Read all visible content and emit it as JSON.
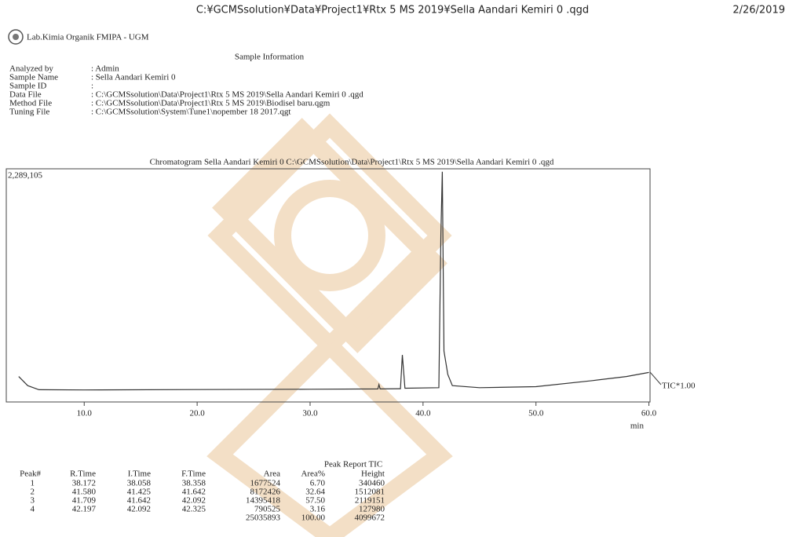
{
  "header": {
    "title": "C:¥GCMSsolution¥Data¥Project1¥Rtx 5 MS 2019¥Sella Aandari Kemiri 0 .qgd",
    "date": "2/26/2019",
    "lab": "Lab.Kimia Organik FMIPA - UGM"
  },
  "sample_info": {
    "title": "Sample Information",
    "fields": [
      {
        "label": "Analyzed by",
        "value": ": Admin"
      },
      {
        "label": "Sample Name",
        "value": ": Sella Aandari Kemiri 0"
      },
      {
        "label": "Sample ID",
        "value": ":"
      },
      {
        "label": "Data File",
        "value": ": C:\\GCMSsolution\\Data\\Project1\\Rtx 5 MS 2019\\Sella Aandari Kemiri 0 .qgd"
      },
      {
        "label": "Method File",
        "value": ": C:\\GCMSsolution\\Data\\Project1\\Rtx 5 MS 2019\\Biodisel baru.qgm"
      },
      {
        "label": "Tuning File",
        "value": ": C:\\GCMSsolution\\System\\Tune1\\nopember 18 2017.qgt"
      }
    ]
  },
  "chromatogram": {
    "type": "line",
    "title": "Chromatogram Sella Aandari Kemiri 0  C:\\GCMSsolution\\Data\\Project1\\Rtx 5 MS 2019\\Sella Aandari Kemiri 0 .qgd",
    "trace_label": "TIC*1.00",
    "x_unit": "min",
    "x": [
      4.2,
      5.0,
      6.0,
      10,
      20,
      30,
      36.0,
      36.1,
      36.2,
      38.0,
      38.172,
      38.4,
      41.4,
      41.58,
      41.709,
      41.85,
      42.197,
      42.6,
      45,
      50,
      55,
      58,
      60
    ],
    "y": [
      250000,
      160000,
      120000,
      118000,
      122000,
      125000,
      128000,
      170000,
      128000,
      130000,
      462000,
      135000,
      140000,
      1650000,
      2260000,
      500000,
      270000,
      160000,
      140000,
      150000,
      210000,
      250000,
      290000
    ],
    "color": "#333333",
    "xlim": [
      3.1,
      60.1
    ],
    "ylim": [
      0,
      2289105
    ],
    "xticks": [
      {
        "value": 10,
        "label": "10.0"
      },
      {
        "value": 20,
        "label": "20.0"
      },
      {
        "value": 30,
        "label": "30.0"
      },
      {
        "value": 40,
        "label": "40.0"
      },
      {
        "value": 50,
        "label": "50.0"
      },
      {
        "value": 60,
        "label": "60.0"
      }
    ],
    "yticks": [
      {
        "value": 2289105,
        "label": "2,289,105"
      }
    ]
  },
  "table": {
    "title": "Peak Report TIC",
    "columns": [
      "Peak#",
      "R.Time",
      "I.Time",
      "F.Time",
      "Area",
      "Area%",
      "Height"
    ],
    "rows": [
      [
        "1",
        "38.172",
        "38.058",
        "38.358",
        "1677524",
        "6.70",
        "340460"
      ],
      [
        "2",
        "41.580",
        "41.425",
        "41.642",
        "8172426",
        "32.64",
        "1512081"
      ],
      [
        "3",
        "41.709",
        "41.642",
        "42.092",
        "14395418",
        "57.50",
        "2119151"
      ],
      [
        "4",
        "42.197",
        "42.092",
        "42.325",
        "790525",
        "3.16",
        "127980"
      ]
    ],
    "total": [
      "25035893",
      "100.00",
      "4099672"
    ]
  }
}
